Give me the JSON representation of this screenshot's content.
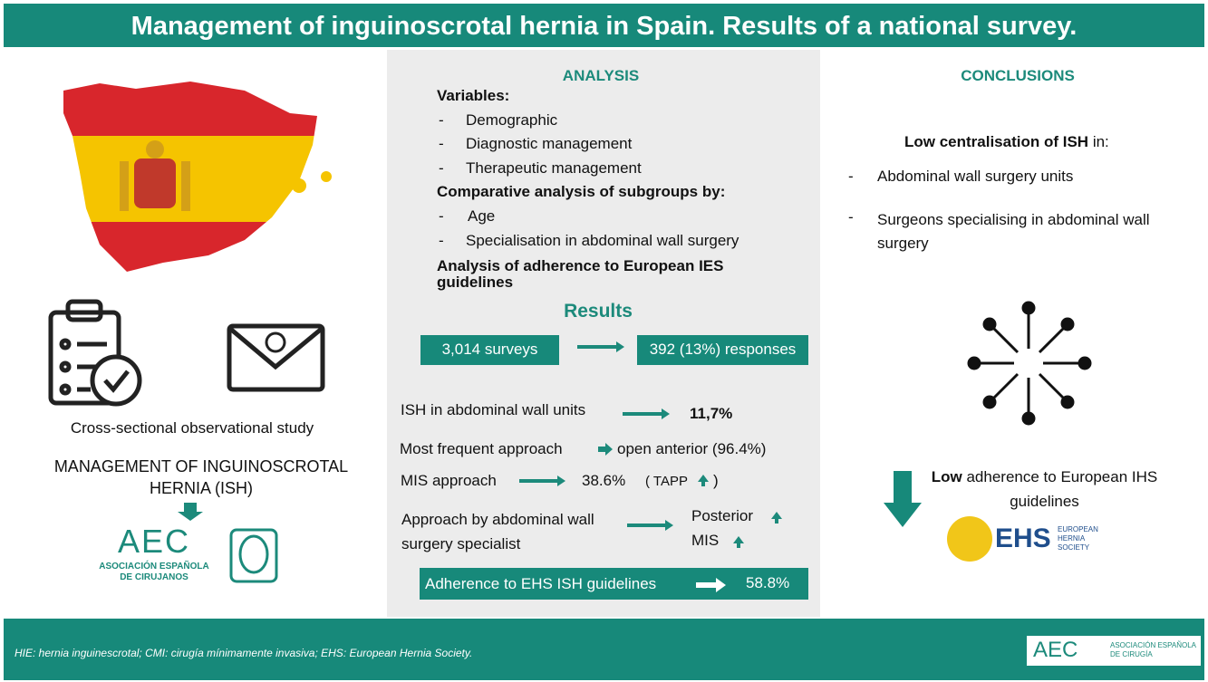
{
  "header": {
    "title": "Management of inguinoscrotal hernia in Spain. Results of a national survey."
  },
  "left": {
    "study": "Cross-sectional observational study",
    "management": "MANAGEMENT OF INGUINOSCROTAL HERNIA (ISH)",
    "logo": {
      "acronym": "AEC",
      "line1": "ASOCIACIÓN ESPAÑOLA",
      "line2": "DE CIRUJANOS"
    }
  },
  "analysis": {
    "heading": "ANALYSIS",
    "variables_title": "Variables:",
    "variables": [
      "Demographic",
      "Diagnostic management",
      "Therapeutic management"
    ],
    "subgroups_title": "Comparative analysis of subgroups by:",
    "subgroups": [
      "Age",
      "Specialisation in abdominal wall surgery"
    ],
    "adherence_title": "Analysis of adherence to European IES guidelines"
  },
  "results": {
    "heading": "Results",
    "surveys": "3,014 surveys",
    "responses": "392 (13%) responses",
    "findings": [
      {
        "label": "ISH in abdominal wall units",
        "value": "11,7%"
      },
      {
        "label": "Most frequent approach",
        "value": "open anterior (96.4%)"
      },
      {
        "label": "MIS approach",
        "value": "38.6%",
        "detail_open": "( TAPP",
        "detail_close": ")"
      },
      {
        "label": "Approach by abdominal wall surgery specialist",
        "values": [
          "Posterior",
          "MIS"
        ]
      }
    ],
    "adherence": {
      "label": "Adherence to EHS ISH guidelines",
      "value": "58.8%"
    }
  },
  "conclusions": {
    "heading": "CONCLUSIONS",
    "centralisation": {
      "bold": "Low centralisation of ISH",
      "rest": " in:"
    },
    "items": [
      "Abdominal wall surgery units",
      "Surgeons specialising in abdominal wall surgery"
    ],
    "adherence": {
      "bold": "Low",
      "rest": " adherence to European IHS guidelines"
    },
    "logo": {
      "acronym": "EHS",
      "name": "EUROPEAN HERNIA SOCIETY"
    }
  },
  "footer": {
    "note": "HIE: hernia inguinescrotal; CMI: cirugía mínimamente invasiva; EHS: European Hernia Society.",
    "logo": {
      "acronym": "AEC",
      "name": "ASOCIACIÓN ESPAÑOLA DE CIRUGÍA"
    }
  }
}
